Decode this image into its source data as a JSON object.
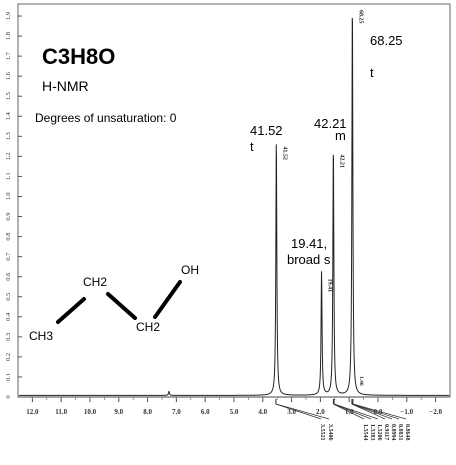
{
  "info": {
    "formula": "C3H8O",
    "technique": "H-NMR",
    "unsaturation": "Degrees of unsaturation: 0"
  },
  "structure": {
    "atoms": [
      "CH3",
      "CH2",
      "CH2",
      "OH"
    ]
  },
  "chart_data": {
    "type": "line",
    "title": "",
    "xlabel": "",
    "ylabel": "",
    "xlim": [
      12.5,
      -2.5
    ],
    "ylim": [
      0,
      1.95
    ],
    "x_ticks": [
      "12.0",
      "11.0",
      "10.0",
      "9.0",
      "8.0",
      "7.0",
      "6.0",
      "5.0",
      "4.0",
      "3.0",
      "2.0",
      "1.0",
      "0.0",
      "−1.0",
      "−2.0"
    ],
    "y_ticks": [
      "0",
      "0.1",
      "0.2",
      "0.3",
      "0.4",
      "0.5",
      "0.6",
      "0.7",
      "0.8",
      "0.9",
      "1.0",
      "1.1",
      "1.2",
      "1.3",
      "1.4",
      "1.5",
      "1.6",
      "1.7",
      "1.8",
      "1.9"
    ],
    "peaks": [
      {
        "shift": 3.53,
        "height": 1.28,
        "integral_label": "41.52",
        "multiplicity": "t",
        "mark": "41.52"
      },
      {
        "shift": 1.96,
        "height": 0.62,
        "integral_label": "19.41,",
        "multiplicity": "broad s",
        "mark": "19.41"
      },
      {
        "shift": 1.55,
        "height": 1.24,
        "integral_label": "42.21",
        "multiplicity": "m",
        "mark": "42.21"
      },
      {
        "shift": 0.89,
        "height": 1.96,
        "integral_label": "68.25",
        "multiplicity": "t",
        "mark": "68.25"
      },
      {
        "shift": 7.26,
        "height": 0.02,
        "integral_label": "",
        "multiplicity": "",
        "mark": ""
      }
    ],
    "small_marks": [
      "1.46"
    ],
    "peak_list": [
      "3.5521",
      "3.5406",
      "1.5544",
      "1.5383",
      "1.5206",
      "0.9117",
      "0.8994",
      "0.8831",
      "0.8648"
    ]
  }
}
